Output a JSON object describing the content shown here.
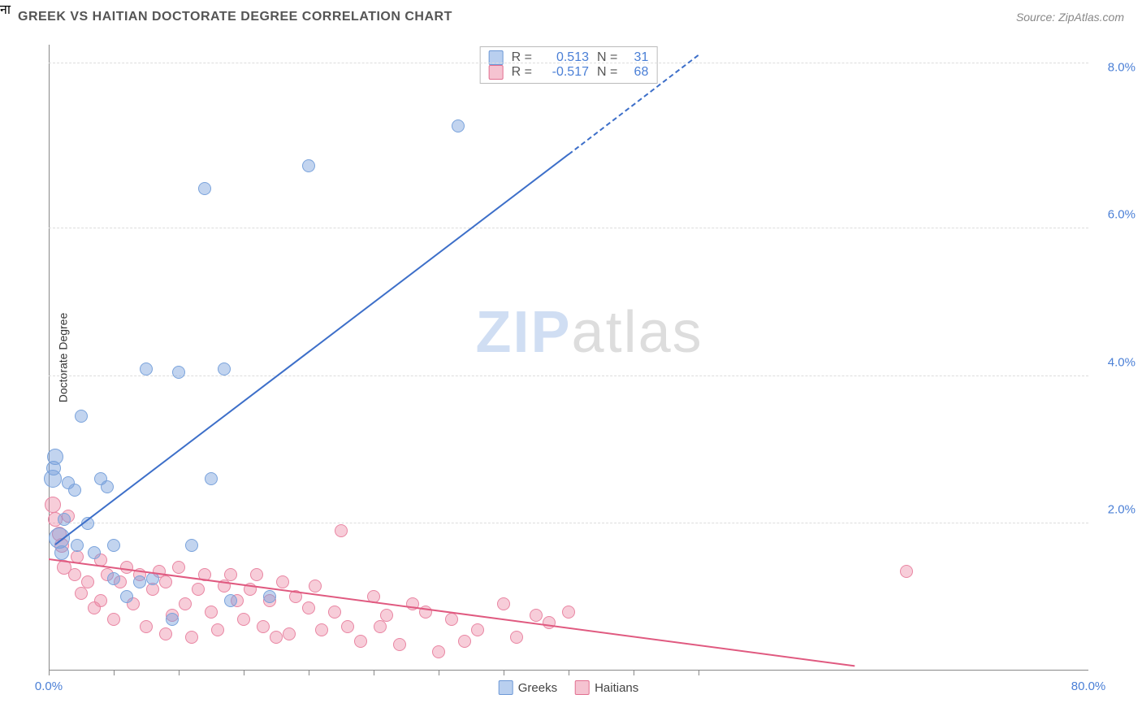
{
  "header": {
    "title": "GREEK VS HAITIAN DOCTORATE DEGREE CORRELATION CHART",
    "source_prefix": "Source: ",
    "source_name": "ZipAtlas.com"
  },
  "watermark": {
    "zip": "ZIP",
    "atlas": "atlas"
  },
  "axes": {
    "y_title": "Doctorate Degree",
    "x_min": 0,
    "x_max": 80,
    "y_min": 0,
    "y_max": 8.5,
    "x_ticks": [
      0,
      5,
      10,
      15,
      20,
      25,
      30,
      35,
      40,
      45,
      50
    ],
    "x_labels": [
      {
        "value": 0,
        "text": "0.0%",
        "color": "#4a7fd6"
      },
      {
        "value": 80,
        "text": "80.0%",
        "color": "#4a7fd6"
      }
    ],
    "y_grid": [
      2,
      4,
      6,
      8.25
    ],
    "y_labels_right": [
      {
        "value": 2,
        "text": "2.0%",
        "color": "#4a7fd6"
      },
      {
        "value": 4,
        "text": "4.0%",
        "color": "#4a7fd6"
      },
      {
        "value": 6,
        "text": "6.0%",
        "color": "#4a7fd6"
      },
      {
        "value": 8,
        "text": "8.0%",
        "color": "#4a7fd6"
      }
    ],
    "grid_color": "#dddddd",
    "axis_color": "#888888"
  },
  "series": {
    "greeks": {
      "label": "Greeks",
      "color_fill": "rgba(120,160,220,0.45)",
      "color_stroke": "#7aa3dc",
      "swatch_fill": "#b9cfef",
      "swatch_border": "#6d98d6",
      "marker_radius": 9,
      "trend": {
        "x1": 0.5,
        "y1": 1.7,
        "x2": 40,
        "y2": 7.0,
        "color": "#3d6fc9",
        "width": 2.2,
        "dash_to": {
          "x": 50,
          "y": 8.35
        }
      },
      "points": [
        {
          "x": 0.5,
          "y": 2.9,
          "r": 10
        },
        {
          "x": 0.3,
          "y": 2.6,
          "r": 11
        },
        {
          "x": 0.4,
          "y": 2.75,
          "r": 9
        },
        {
          "x": 0.8,
          "y": 1.8,
          "r": 13
        },
        {
          "x": 1.0,
          "y": 1.6,
          "r": 9
        },
        {
          "x": 1.2,
          "y": 2.05,
          "r": 8
        },
        {
          "x": 1.5,
          "y": 2.55,
          "r": 8
        },
        {
          "x": 2.0,
          "y": 2.45,
          "r": 8
        },
        {
          "x": 2.2,
          "y": 1.7,
          "r": 8
        },
        {
          "x": 2.5,
          "y": 3.45,
          "r": 8
        },
        {
          "x": 3.0,
          "y": 2.0,
          "r": 8
        },
        {
          "x": 3.5,
          "y": 1.6,
          "r": 8
        },
        {
          "x": 4.0,
          "y": 2.6,
          "r": 8
        },
        {
          "x": 4.5,
          "y": 2.5,
          "r": 8
        },
        {
          "x": 5.0,
          "y": 1.25,
          "r": 8
        },
        {
          "x": 5.0,
          "y": 1.7,
          "r": 8
        },
        {
          "x": 6.0,
          "y": 1.0,
          "r": 8
        },
        {
          "x": 7.0,
          "y": 1.2,
          "r": 8
        },
        {
          "x": 7.5,
          "y": 4.1,
          "r": 8
        },
        {
          "x": 8.0,
          "y": 1.25,
          "r": 8
        },
        {
          "x": 9.5,
          "y": 0.7,
          "r": 8
        },
        {
          "x": 10.0,
          "y": 4.05,
          "r": 8
        },
        {
          "x": 11.0,
          "y": 1.7,
          "r": 8
        },
        {
          "x": 12.5,
          "y": 2.6,
          "r": 8
        },
        {
          "x": 13.5,
          "y": 4.1,
          "r": 8
        },
        {
          "x": 14.0,
          "y": 0.95,
          "r": 8
        },
        {
          "x": 12.0,
          "y": 6.55,
          "r": 8
        },
        {
          "x": 17.0,
          "y": 1.0,
          "r": 8
        },
        {
          "x": 20.0,
          "y": 6.85,
          "r": 8
        },
        {
          "x": 31.5,
          "y": 7.4,
          "r": 8
        }
      ]
    },
    "haitians": {
      "label": "Haitians",
      "color_fill": "rgba(236,130,160,0.40)",
      "color_stroke": "#e986a3",
      "swatch_fill": "#f5c3d1",
      "swatch_border": "#e26f90",
      "marker_radius": 9,
      "trend": {
        "x1": 0,
        "y1": 1.5,
        "x2": 62,
        "y2": 0.05,
        "color": "#e05a80",
        "width": 2.0
      },
      "points": [
        {
          "x": 0.3,
          "y": 2.25,
          "r": 10
        },
        {
          "x": 0.5,
          "y": 2.05,
          "r": 9
        },
        {
          "x": 0.8,
          "y": 1.85,
          "r": 9
        },
        {
          "x": 1.0,
          "y": 1.7,
          "r": 9
        },
        {
          "x": 1.2,
          "y": 1.4,
          "r": 9
        },
        {
          "x": 1.5,
          "y": 2.1,
          "r": 8
        },
        {
          "x": 2.0,
          "y": 1.3,
          "r": 8
        },
        {
          "x": 2.2,
          "y": 1.55,
          "r": 8
        },
        {
          "x": 2.5,
          "y": 1.05,
          "r": 8
        },
        {
          "x": 3.0,
          "y": 1.2,
          "r": 8
        },
        {
          "x": 3.5,
          "y": 0.85,
          "r": 8
        },
        {
          "x": 4.0,
          "y": 1.5,
          "r": 8
        },
        {
          "x": 4.0,
          "y": 0.95,
          "r": 8
        },
        {
          "x": 4.5,
          "y": 1.3,
          "r": 8
        },
        {
          "x": 5.0,
          "y": 0.7,
          "r": 8
        },
        {
          "x": 5.5,
          "y": 1.2,
          "r": 8
        },
        {
          "x": 6.0,
          "y": 1.4,
          "r": 8
        },
        {
          "x": 6.5,
          "y": 0.9,
          "r": 8
        },
        {
          "x": 7.0,
          "y": 1.3,
          "r": 8
        },
        {
          "x": 7.5,
          "y": 0.6,
          "r": 8
        },
        {
          "x": 8.0,
          "y": 1.1,
          "r": 8
        },
        {
          "x": 8.5,
          "y": 1.35,
          "r": 8
        },
        {
          "x": 9.0,
          "y": 1.2,
          "r": 8
        },
        {
          "x": 9.0,
          "y": 0.5,
          "r": 8
        },
        {
          "x": 9.5,
          "y": 0.75,
          "r": 8
        },
        {
          "x": 10.0,
          "y": 1.4,
          "r": 8
        },
        {
          "x": 10.5,
          "y": 0.9,
          "r": 8
        },
        {
          "x": 11.0,
          "y": 0.45,
          "r": 8
        },
        {
          "x": 11.5,
          "y": 1.1,
          "r": 8
        },
        {
          "x": 12.0,
          "y": 1.3,
          "r": 8
        },
        {
          "x": 12.5,
          "y": 0.8,
          "r": 8
        },
        {
          "x": 13.0,
          "y": 0.55,
          "r": 8
        },
        {
          "x": 13.5,
          "y": 1.15,
          "r": 8
        },
        {
          "x": 14.0,
          "y": 1.3,
          "r": 8
        },
        {
          "x": 14.5,
          "y": 0.95,
          "r": 8
        },
        {
          "x": 15.0,
          "y": 0.7,
          "r": 8
        },
        {
          "x": 15.5,
          "y": 1.1,
          "r": 8
        },
        {
          "x": 16.0,
          "y": 1.3,
          "r": 8
        },
        {
          "x": 16.5,
          "y": 0.6,
          "r": 8
        },
        {
          "x": 17.0,
          "y": 0.95,
          "r": 8
        },
        {
          "x": 17.5,
          "y": 0.45,
          "r": 8
        },
        {
          "x": 18.0,
          "y": 1.2,
          "r": 8
        },
        {
          "x": 18.5,
          "y": 0.5,
          "r": 8
        },
        {
          "x": 19.0,
          "y": 1.0,
          "r": 8
        },
        {
          "x": 20.0,
          "y": 0.85,
          "r": 8
        },
        {
          "x": 20.5,
          "y": 1.15,
          "r": 8
        },
        {
          "x": 21.0,
          "y": 0.55,
          "r": 8
        },
        {
          "x": 22.0,
          "y": 0.8,
          "r": 8
        },
        {
          "x": 22.5,
          "y": 1.9,
          "r": 8
        },
        {
          "x": 23.0,
          "y": 0.6,
          "r": 8
        },
        {
          "x": 24.0,
          "y": 0.4,
          "r": 8
        },
        {
          "x": 25.0,
          "y": 1.0,
          "r": 8
        },
        {
          "x": 25.5,
          "y": 0.6,
          "r": 8
        },
        {
          "x": 26.0,
          "y": 0.75,
          "r": 8
        },
        {
          "x": 27.0,
          "y": 0.35,
          "r": 8
        },
        {
          "x": 28.0,
          "y": 0.9,
          "r": 8
        },
        {
          "x": 29.0,
          "y": 0.8,
          "r": 8
        },
        {
          "x": 30.0,
          "y": 0.25,
          "r": 8
        },
        {
          "x": 31.0,
          "y": 0.7,
          "r": 8
        },
        {
          "x": 32.0,
          "y": 0.4,
          "r": 8
        },
        {
          "x": 33.0,
          "y": 0.55,
          "r": 8
        },
        {
          "x": 35.0,
          "y": 0.9,
          "r": 8
        },
        {
          "x": 36.0,
          "y": 0.45,
          "r": 8
        },
        {
          "x": 37.5,
          "y": 0.75,
          "r": 8
        },
        {
          "x": 38.5,
          "y": 0.65,
          "r": 8
        },
        {
          "x": 40.0,
          "y": 0.8,
          "r": 8
        },
        {
          "x": 66.0,
          "y": 1.35,
          "r": 8
        }
      ]
    }
  },
  "stats": {
    "rows": [
      {
        "series": "greeks",
        "R_label": "R =",
        "R": "0.513",
        "N_label": "N =",
        "N": "31",
        "R_color": "#4a7fd6",
        "N_color": "#4a7fd6"
      },
      {
        "series": "haitians",
        "R_label": "R =",
        "R": "-0.517",
        "N_label": "N =",
        "N": "68",
        "R_color": "#4a7fd6",
        "N_color": "#4a7fd6"
      }
    ],
    "text_color": "#555"
  },
  "legend": {
    "items": [
      {
        "series": "greeks"
      },
      {
        "series": "haitians"
      }
    ]
  }
}
